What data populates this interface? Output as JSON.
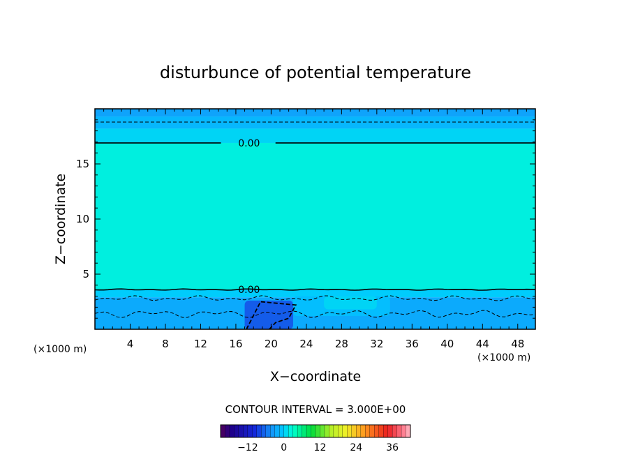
{
  "chart_data": {
    "type": "heatmap",
    "title": "disturbunce of potential temperature",
    "xlabel": "X−coordinate",
    "ylabel": "Z−coordinate",
    "x_unit_left": "(×1000 m)",
    "x_unit_right": "(×1000 m)",
    "xlim": [
      0,
      50
    ],
    "ylim": [
      0,
      20
    ],
    "x_ticks": [
      4,
      8,
      12,
      16,
      20,
      24,
      28,
      32,
      36,
      40,
      44,
      48
    ],
    "y_ticks": [
      5,
      10,
      15
    ],
    "contour_interval_label": "CONTOUR INTERVAL = 3.000E+00",
    "contour_labels": [
      {
        "text": "0.00",
        "x": 17.5,
        "z": 16.9
      },
      {
        "text": "0.00",
        "x": 17.5,
        "z": 3.6
      }
    ],
    "colorbar": {
      "range": [
        -21,
        42
      ],
      "ticks": [
        -12,
        0,
        12,
        24,
        36
      ],
      "tick_labels": [
        "−12",
        "0",
        "12",
        "24",
        "36"
      ]
    },
    "fill_bands": [
      {
        "z0": 19.3,
        "z1": 20.0,
        "value": -3.0
      },
      {
        "z0": 18.2,
        "z1": 19.3,
        "value": -1.5
      },
      {
        "z0": 16.9,
        "z1": 18.2,
        "value": 0.5
      },
      {
        "z0": 3.6,
        "z1": 16.9,
        "value": 2.0
      },
      {
        "z0": 2.9,
        "z1": 3.6,
        "value": 0.0
      },
      {
        "z0": 0.0,
        "z1": 2.9,
        "value": -2.5
      }
    ],
    "anomalies": [
      {
        "x0": 17,
        "x1": 22.5,
        "z0": 0,
        "z1": 2.6,
        "value": -7.0
      },
      {
        "x0": 22.5,
        "x1": 33.5,
        "z0": 1.2,
        "z1": 3.0,
        "value": -1.0
      },
      {
        "x0": 26,
        "x1": 32,
        "z0": 1.8,
        "z1": 3.0,
        "value": 0.5
      }
    ]
  }
}
